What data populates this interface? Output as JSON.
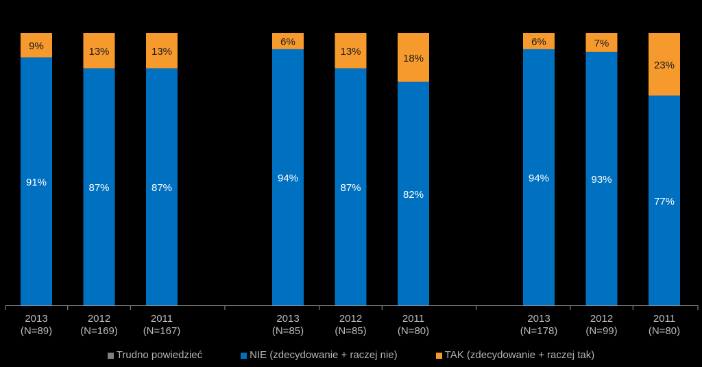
{
  "chart_data": {
    "type": "bar",
    "stacked": true,
    "groups": [
      {
        "bars": [
          {
            "year": "2013",
            "n": "(N=89)",
            "nie": 91,
            "tak": 9,
            "trudno": 0
          },
          {
            "year": "2012",
            "n": "(N=169)",
            "nie": 87,
            "tak": 13,
            "trudno": 0
          },
          {
            "year": "2011",
            "n": "(N=167)",
            "nie": 87,
            "tak": 13,
            "trudno": 0
          }
        ]
      },
      {
        "bars": [
          {
            "year": "2013",
            "n": "(N=85)",
            "nie": 94,
            "tak": 6,
            "trudno": 0
          },
          {
            "year": "2012",
            "n": "(N=85)",
            "nie": 87,
            "tak": 13,
            "trudno": 0
          },
          {
            "year": "2011",
            "n": "(N=80)",
            "nie": 82,
            "tak": 18,
            "trudno": 0
          }
        ]
      },
      {
        "bars": [
          {
            "year": "2013",
            "n": "(N=178)",
            "nie": 94,
            "tak": 6,
            "trudno": 0
          },
          {
            "year": "2012",
            "n": "(N=99)",
            "nie": 93,
            "tak": 7,
            "trudno": 0
          },
          {
            "year": "2011",
            "n": "(N=80)",
            "nie": 77,
            "tak": 23,
            "trudno": 0
          }
        ]
      }
    ],
    "series": [
      {
        "key": "trudno",
        "name": "Trudno powiedzieć",
        "color": "#808080"
      },
      {
        "key": "nie",
        "name": "NIE (zdecydowanie + raczej nie)",
        "color": "#0070C0"
      },
      {
        "key": "tak",
        "name": "TAK (zdecydowanie + raczej tak)",
        "color": "#F79A2E"
      }
    ],
    "ylim": [
      0,
      100
    ],
    "value_suffix": "%",
    "grid": false,
    "legend_position": "bottom"
  }
}
